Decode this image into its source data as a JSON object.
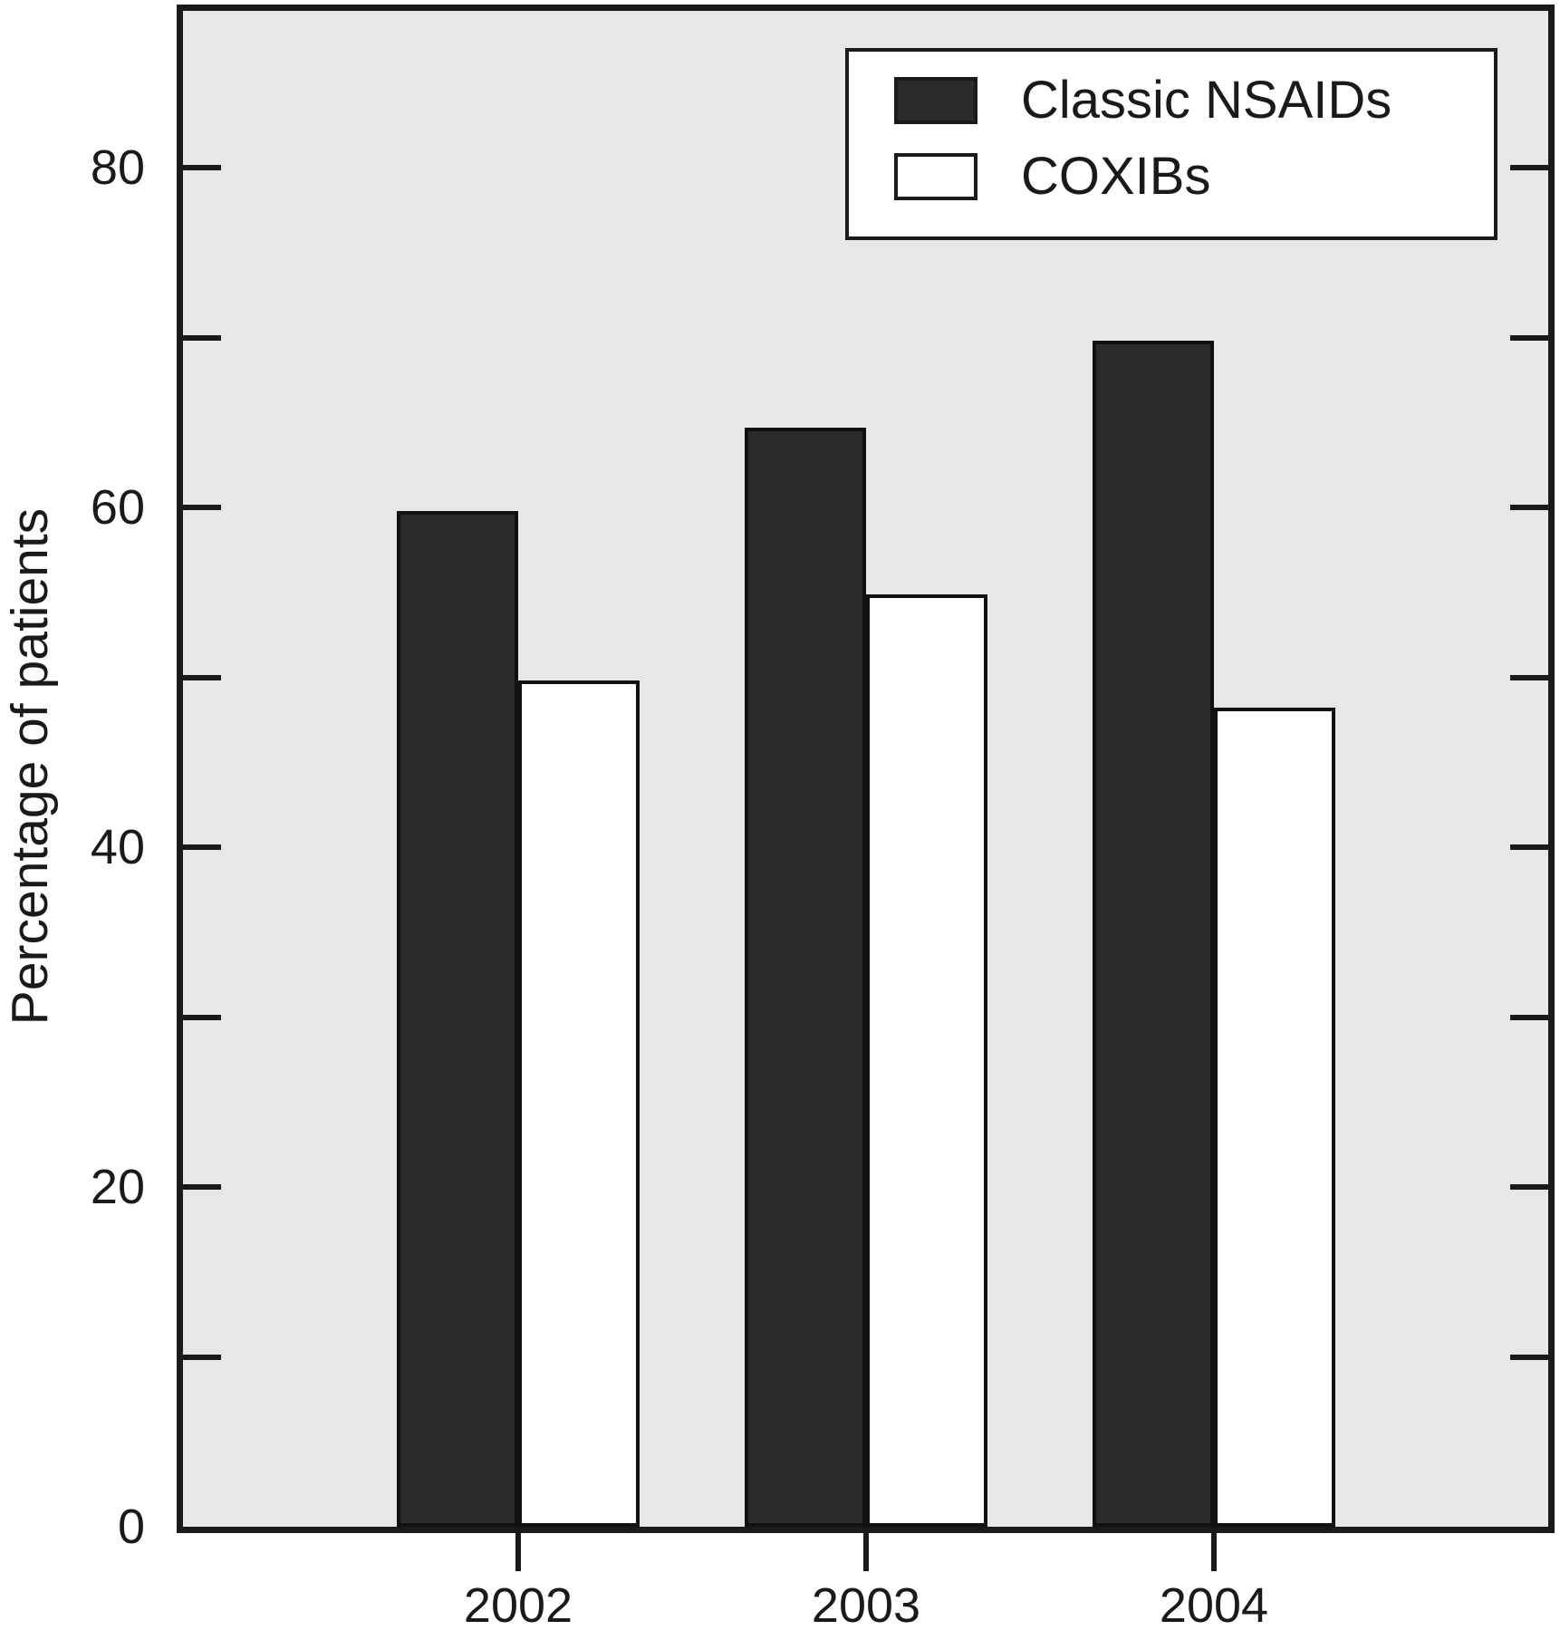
{
  "chart_data": {
    "type": "bar",
    "title": "",
    "categories": [
      "2002",
      "2003",
      "2004"
    ],
    "series": [
      {
        "name": "Classic NSAIDs",
        "values": [
          59.8,
          64.7,
          69.8
        ],
        "fill": "#2b2b2b"
      },
      {
        "name": "COXIBs",
        "values": [
          49.8,
          54.9,
          48.2
        ],
        "fill": "#ffffff"
      }
    ],
    "xlabel": "",
    "ylabel": "Percentage of patients",
    "ylim": [
      0,
      89
    ],
    "yticks_labeled": [
      0,
      20,
      40,
      60,
      80
    ],
    "yticks_minor_step": 10,
    "grid": false,
    "legend_position": "top-right",
    "plot_background": "#e7e7e7",
    "axis_color": "#1a1a1a",
    "bar_outline_color": "#111111"
  }
}
